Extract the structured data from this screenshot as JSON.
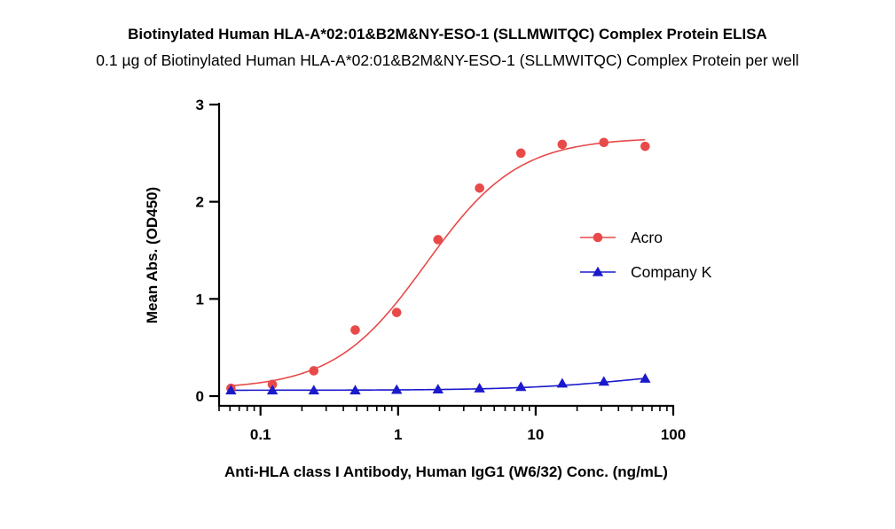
{
  "chart_data": {
    "type": "scatter",
    "title": "Biotinylated Human HLA-A*02:01&B2M&NY-ESO-1 (SLLMWITQC) Complex Protein ELISA",
    "subtitle": "0.1 µg of Biotinylated Human HLA-A*02:01&B2M&NY-ESO-1 (SLLMWITQC) Complex Protein per well",
    "xlabel": "Anti-HLA class I Antibody, Human IgG1 (W6/32) Conc. (ng/mL)",
    "ylabel": "Mean Abs. (OD450)",
    "xscale": "log",
    "xlim": [
      0.05,
      100
    ],
    "ylim": [
      0,
      3
    ],
    "xticks": [
      0.1,
      1,
      10,
      100
    ],
    "xtick_labels": [
      "0.1",
      "1",
      "10",
      "100"
    ],
    "yticks": [
      0,
      1,
      2,
      3
    ],
    "ytick_labels": [
      "0",
      "1",
      "2",
      "3"
    ],
    "legend_position": "right",
    "series": [
      {
        "name": "Acro",
        "color": "#e84a4a",
        "marker": "circle",
        "x": [
          0.061,
          0.122,
          0.244,
          0.488,
          0.977,
          1.95,
          3.91,
          7.81,
          15.6,
          31.3,
          62.5
        ],
        "y": [
          0.08,
          0.12,
          0.26,
          0.68,
          0.86,
          1.61,
          2.14,
          2.5,
          2.59,
          2.61,
          2.57
        ],
        "fit": {
          "bottom": 0.07,
          "top": 2.66,
          "ec50": 1.6,
          "hill": 1.3
        }
      },
      {
        "name": "Company K",
        "color": "#1a1acc",
        "marker": "triangle",
        "x": [
          0.061,
          0.122,
          0.244,
          0.488,
          0.977,
          1.95,
          3.91,
          7.81,
          15.6,
          31.3,
          62.5
        ],
        "y": [
          0.06,
          0.06,
          0.06,
          0.06,
          0.065,
          0.07,
          0.08,
          0.095,
          0.13,
          0.15,
          0.18
        ],
        "fit": {
          "bottom": 0.06,
          "top": 0.3,
          "ec50": 60,
          "hill": 1.0
        }
      }
    ]
  }
}
